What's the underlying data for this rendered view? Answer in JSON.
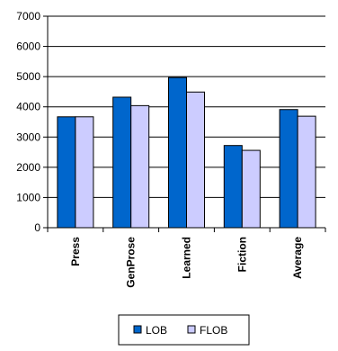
{
  "chart_data": {
    "type": "bar",
    "categories": [
      "Press",
      "GenProse",
      "Learned",
      "Fiction",
      "Average"
    ],
    "series": [
      {
        "name": "LOB",
        "values": [
          3670,
          4320,
          4970,
          2720,
          3910
        ],
        "color": "#0066cc"
      },
      {
        "name": "FLOB",
        "values": [
          3670,
          4040,
          4490,
          2560,
          3690
        ],
        "color": "#ccccff"
      }
    ],
    "yticks": [
      0,
      1000,
      2000,
      3000,
      4000,
      5000,
      6000,
      7000
    ],
    "ylim": [
      0,
      7000
    ],
    "grid": true,
    "legend_position": "bottom"
  }
}
